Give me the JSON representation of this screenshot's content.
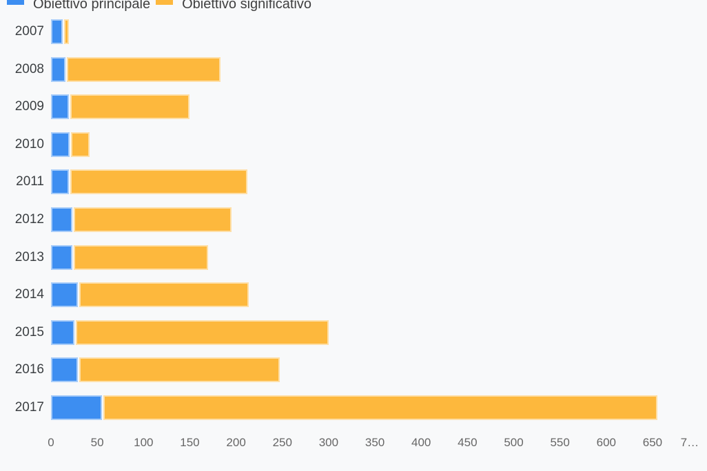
{
  "legend": {
    "items": [
      {
        "label": "Obiettivo principale",
        "color": "#3d8ef1"
      },
      {
        "label": "Obiettivo significativo",
        "color": "#fdb83d"
      }
    ]
  },
  "chart_data": {
    "type": "bar",
    "orientation": "horizontal",
    "stacked": true,
    "title": "",
    "xlabel": "",
    "ylabel": "",
    "grid": false,
    "legend_position": "top",
    "background_color": "#f8f9fa",
    "categories": [
      "2007",
      "2008",
      "2009",
      "2010",
      "2011",
      "2012",
      "2013",
      "2014",
      "2015",
      "2016",
      "2017"
    ],
    "series": [
      {
        "name": "Obiettivo principale",
        "color": "#3d8ef1",
        "values": [
          13,
          16,
          19,
          20,
          19,
          23,
          23,
          29,
          25,
          29,
          55
        ]
      },
      {
        "name": "Obiettivo significativo",
        "color": "#fdb83d",
        "values": [
          6,
          167,
          131,
          22,
          193,
          172,
          147,
          185,
          275,
          218,
          600
        ]
      }
    ],
    "xlim": [
      0,
      700
    ],
    "x_ticks": [
      0,
      50,
      100,
      150,
      200,
      250,
      300,
      350,
      400,
      450,
      500,
      550,
      600,
      650,
      700
    ],
    "x_tick_labels": [
      "0",
      "50",
      "100",
      "150",
      "200",
      "250",
      "300",
      "350",
      "400",
      "450",
      "500",
      "550",
      "600",
      "650",
      "7…"
    ],
    "axis_text_color": "#666666",
    "category_text_color": "#3c4043"
  }
}
